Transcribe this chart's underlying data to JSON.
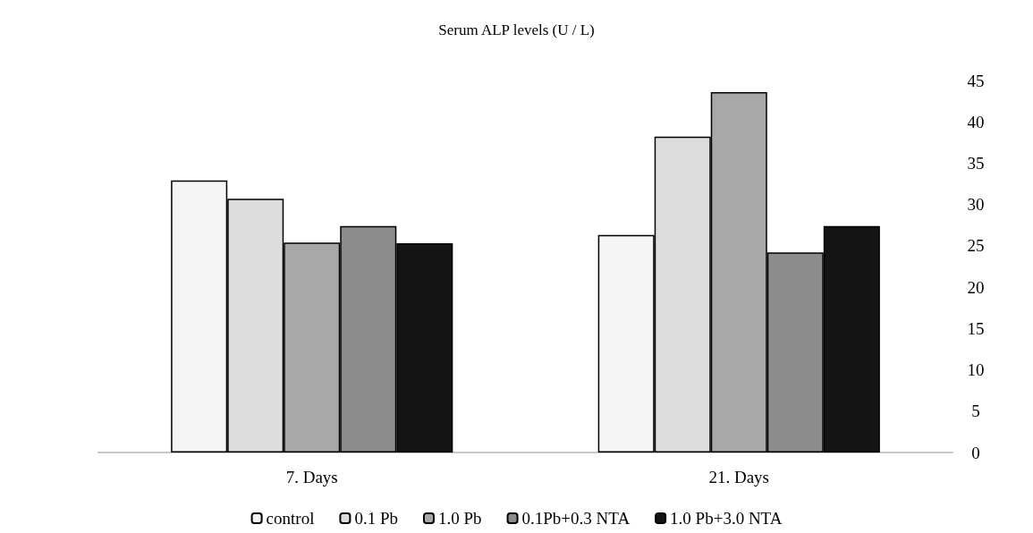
{
  "chart_data": {
    "type": "bar",
    "title": "Serum ALP levels (U / L)",
    "categories": [
      "7. Days",
      "21. Days"
    ],
    "series": [
      {
        "name": "control",
        "color": "#f5f5f5",
        "values": [
          32.9,
          26.3
        ]
      },
      {
        "name": "0.1 Pb",
        "color": "#dddddd",
        "values": [
          30.7,
          38.2
        ]
      },
      {
        "name": "1.0 Pb",
        "color": "#a8a8a8",
        "values": [
          25.4,
          43.6
        ]
      },
      {
        "name": "0.1Pb+0.3 NTA",
        "color": "#8c8c8c",
        "values": [
          27.4,
          24.2
        ]
      },
      {
        "name": "1.0 Pb+3.0 NTA",
        "color": "#141414",
        "values": [
          25.3,
          27.4
        ]
      }
    ],
    "ylim": [
      0,
      45
    ],
    "yticks": [
      0,
      5,
      10,
      15,
      20,
      25,
      30,
      35,
      40,
      45
    ],
    "grid": false,
    "legend": "bottom"
  }
}
